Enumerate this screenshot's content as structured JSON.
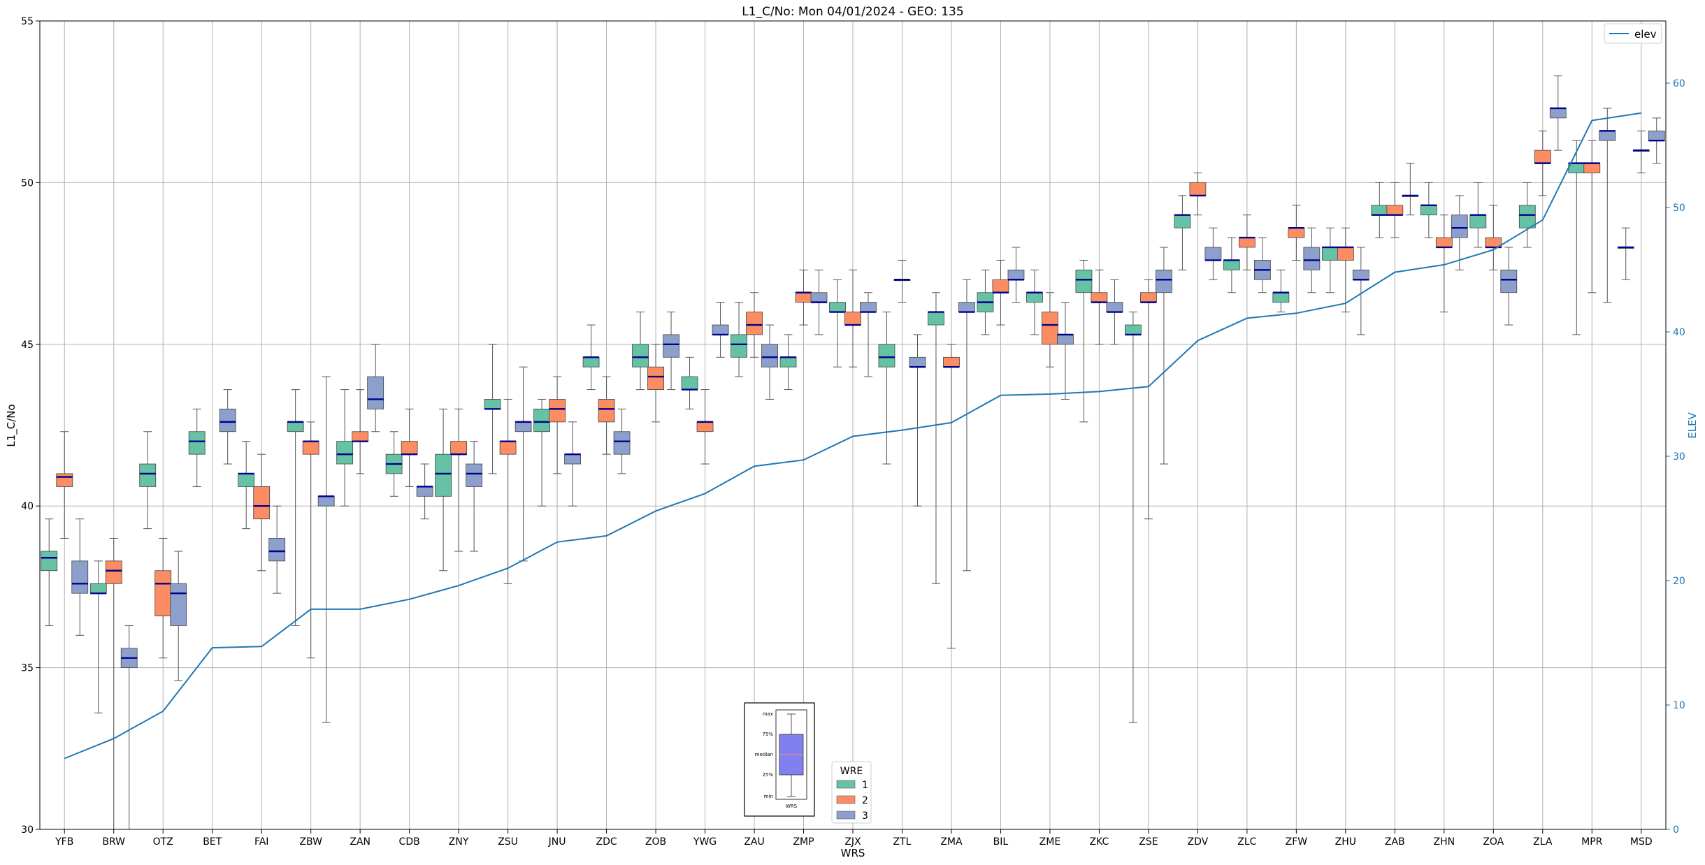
{
  "chart_data": {
    "type": "box",
    "title": "L1_C/No: Mon 04/01/2024 - GEO: 135",
    "xlabel": "WRS",
    "ylabel": "L1_C/No",
    "y2label": "ELEV",
    "ylim": [
      30,
      55
    ],
    "y2lim": [
      0,
      65
    ],
    "yticks": [
      "30",
      "35",
      "40",
      "45",
      "50",
      "55"
    ],
    "y2ticks": [
      "0",
      "10",
      "20",
      "30",
      "40",
      "50",
      "60"
    ],
    "grid": true,
    "categories": [
      "YFB",
      "BRW",
      "OTZ",
      "BET",
      "FAI",
      "ZBW",
      "ZAN",
      "CDB",
      "ZNY",
      "ZSU",
      "JNU",
      "ZDC",
      "ZOB",
      "YWG",
      "ZAU",
      "ZMP",
      "ZJX",
      "ZTL",
      "ZMA",
      "BIL",
      "ZME",
      "ZKC",
      "ZSE",
      "ZDV",
      "ZLC",
      "ZFW",
      "ZHU",
      "ZAB",
      "ZHN",
      "ZOA",
      "ZLA",
      "MPR",
      "MSD"
    ],
    "wre_colors": {
      "1": "#66c2a5",
      "2": "#fc8d62",
      "3": "#8da0cb"
    },
    "boxes": [
      {
        "wrs": "YFB",
        "wre": "1",
        "min": 36.3,
        "q1": 38.0,
        "median": 38.4,
        "q3": 38.6,
        "max": 39.6
      },
      {
        "wrs": "YFB",
        "wre": "2",
        "min": 39.0,
        "q1": 40.6,
        "median": 40.9,
        "q3": 41.0,
        "max": 42.3
      },
      {
        "wrs": "YFB",
        "wre": "3",
        "min": 36.0,
        "q1": 37.3,
        "median": 37.6,
        "q3": 38.3,
        "max": 39.6
      },
      {
        "wrs": "BRW",
        "wre": "1",
        "min": 33.6,
        "q1": 37.3,
        "median": 37.3,
        "q3": 37.6,
        "max": 38.3
      },
      {
        "wrs": "BRW",
        "wre": "2",
        "min": 30.0,
        "q1": 37.6,
        "median": 38.0,
        "q3": 38.3,
        "max": 39.0
      },
      {
        "wrs": "BRW",
        "wre": "3",
        "min": 30.0,
        "q1": 35.0,
        "median": 35.3,
        "q3": 35.6,
        "max": 36.3
      },
      {
        "wrs": "OTZ",
        "wre": "1",
        "min": 39.3,
        "q1": 40.6,
        "median": 41.0,
        "q3": 41.3,
        "max": 42.3
      },
      {
        "wrs": "OTZ",
        "wre": "2",
        "min": 35.3,
        "q1": 36.6,
        "median": 37.6,
        "q3": 38.0,
        "max": 39.0
      },
      {
        "wrs": "OTZ",
        "wre": "3",
        "min": 34.6,
        "q1": 36.3,
        "median": 37.3,
        "q3": 37.6,
        "max": 38.6
      },
      {
        "wrs": "BET",
        "wre": "1",
        "min": 40.6,
        "q1": 41.6,
        "median": 42.0,
        "q3": 42.3,
        "max": 43.0
      },
      {
        "wrs": "BET",
        "wre": "3",
        "min": 41.3,
        "q1": 42.3,
        "median": 42.6,
        "q3": 43.0,
        "max": 43.6
      },
      {
        "wrs": "FAI",
        "wre": "1",
        "min": 39.3,
        "q1": 40.6,
        "median": 41.0,
        "q3": 41.0,
        "max": 42.0
      },
      {
        "wrs": "FAI",
        "wre": "2",
        "min": 38.0,
        "q1": 39.6,
        "median": 40.0,
        "q3": 40.6,
        "max": 41.6
      },
      {
        "wrs": "FAI",
        "wre": "3",
        "min": 37.3,
        "q1": 38.3,
        "median": 38.6,
        "q3": 39.0,
        "max": 40.0
      },
      {
        "wrs": "ZBW",
        "wre": "1",
        "min": 36.3,
        "q1": 42.3,
        "median": 42.6,
        "q3": 42.6,
        "max": 43.6
      },
      {
        "wrs": "ZBW",
        "wre": "2",
        "min": 35.3,
        "q1": 41.6,
        "median": 42.0,
        "q3": 42.0,
        "max": 42.6
      },
      {
        "wrs": "ZBW",
        "wre": "3",
        "min": 33.3,
        "q1": 40.0,
        "median": 40.3,
        "q3": 40.3,
        "max": 44.0
      },
      {
        "wrs": "ZAN",
        "wre": "1",
        "min": 40.0,
        "q1": 41.3,
        "median": 41.6,
        "q3": 42.0,
        "max": 43.6
      },
      {
        "wrs": "ZAN",
        "wre": "2",
        "min": 41.0,
        "q1": 42.0,
        "median": 42.0,
        "q3": 42.3,
        "max": 43.6
      },
      {
        "wrs": "ZAN",
        "wre": "3",
        "min": 42.3,
        "q1": 43.0,
        "median": 43.3,
        "q3": 44.0,
        "max": 45.0
      },
      {
        "wrs": "CDB",
        "wre": "1",
        "min": 40.3,
        "q1": 41.0,
        "median": 41.3,
        "q3": 41.6,
        "max": 42.3
      },
      {
        "wrs": "CDB",
        "wre": "2",
        "min": 40.6,
        "q1": 41.6,
        "median": 41.6,
        "q3": 42.0,
        "max": 43.0
      },
      {
        "wrs": "CDB",
        "wre": "3",
        "min": 39.6,
        "q1": 40.3,
        "median": 40.6,
        "q3": 40.6,
        "max": 41.3
      },
      {
        "wrs": "ZNY",
        "wre": "1",
        "min": 38.0,
        "q1": 40.3,
        "median": 41.0,
        "q3": 41.6,
        "max": 43.0
      },
      {
        "wrs": "ZNY",
        "wre": "2",
        "min": 38.6,
        "q1": 41.6,
        "median": 41.6,
        "q3": 42.0,
        "max": 43.0
      },
      {
        "wrs": "ZNY",
        "wre": "3",
        "min": 38.6,
        "q1": 40.6,
        "median": 41.0,
        "q3": 41.3,
        "max": 42.0
      },
      {
        "wrs": "ZSU",
        "wre": "1",
        "min": 41.0,
        "q1": 43.0,
        "median": 43.0,
        "q3": 43.3,
        "max": 45.0
      },
      {
        "wrs": "ZSU",
        "wre": "2",
        "min": 37.6,
        "q1": 41.6,
        "median": 42.0,
        "q3": 42.0,
        "max": 43.3
      },
      {
        "wrs": "ZSU",
        "wre": "3",
        "min": 38.3,
        "q1": 42.3,
        "median": 42.6,
        "q3": 42.6,
        "max": 44.3
      },
      {
        "wrs": "JNU",
        "wre": "1",
        "min": 40.0,
        "q1": 42.3,
        "median": 42.6,
        "q3": 43.0,
        "max": 43.3
      },
      {
        "wrs": "JNU",
        "wre": "2",
        "min": 41.0,
        "q1": 42.6,
        "median": 43.0,
        "q3": 43.3,
        "max": 44.0
      },
      {
        "wrs": "JNU",
        "wre": "3",
        "min": 40.0,
        "q1": 41.3,
        "median": 41.6,
        "q3": 41.6,
        "max": 42.6
      },
      {
        "wrs": "ZDC",
        "wre": "1",
        "min": 43.6,
        "q1": 44.3,
        "median": 44.6,
        "q3": 44.6,
        "max": 45.6
      },
      {
        "wrs": "ZDC",
        "wre": "2",
        "min": 41.6,
        "q1": 42.6,
        "median": 43.0,
        "q3": 43.3,
        "max": 44.0
      },
      {
        "wrs": "ZDC",
        "wre": "3",
        "min": 41.0,
        "q1": 41.6,
        "median": 42.0,
        "q3": 42.3,
        "max": 43.0
      },
      {
        "wrs": "ZOB",
        "wre": "1",
        "min": 43.6,
        "q1": 44.3,
        "median": 44.6,
        "q3": 45.0,
        "max": 46.0
      },
      {
        "wrs": "ZOB",
        "wre": "2",
        "min": 42.6,
        "q1": 43.6,
        "median": 44.0,
        "q3": 44.3,
        "max": 45.0
      },
      {
        "wrs": "ZOB",
        "wre": "3",
        "min": 43.6,
        "q1": 44.6,
        "median": 45.0,
        "q3": 45.3,
        "max": 46.0
      },
      {
        "wrs": "YWG",
        "wre": "1",
        "min": 43.0,
        "q1": 43.6,
        "median": 43.6,
        "q3": 44.0,
        "max": 44.6
      },
      {
        "wrs": "YWG",
        "wre": "2",
        "min": 41.3,
        "q1": 42.3,
        "median": 42.6,
        "q3": 42.6,
        "max": 43.6
      },
      {
        "wrs": "YWG",
        "wre": "3",
        "min": 44.6,
        "q1": 45.3,
        "median": 45.3,
        "q3": 45.6,
        "max": 46.3
      },
      {
        "wrs": "ZAU",
        "wre": "1",
        "min": 44.0,
        "q1": 44.6,
        "median": 45.0,
        "q3": 45.3,
        "max": 46.3
      },
      {
        "wrs": "ZAU",
        "wre": "2",
        "min": 44.6,
        "q1": 45.3,
        "median": 45.6,
        "q3": 46.0,
        "max": 46.6
      },
      {
        "wrs": "ZAU",
        "wre": "3",
        "min": 43.3,
        "q1": 44.3,
        "median": 44.6,
        "q3": 45.0,
        "max": 45.6
      },
      {
        "wrs": "ZMP",
        "wre": "1",
        "min": 43.6,
        "q1": 44.3,
        "median": 44.6,
        "q3": 44.6,
        "max": 45.3
      },
      {
        "wrs": "ZMP",
        "wre": "2",
        "min": 45.6,
        "q1": 46.3,
        "median": 46.6,
        "q3": 46.6,
        "max": 47.3
      },
      {
        "wrs": "ZMP",
        "wre": "3",
        "min": 45.3,
        "q1": 46.3,
        "median": 46.3,
        "q3": 46.6,
        "max": 47.3
      },
      {
        "wrs": "ZJX",
        "wre": "1",
        "min": 44.3,
        "q1": 46.0,
        "median": 46.0,
        "q3": 46.3,
        "max": 47.0
      },
      {
        "wrs": "ZJX",
        "wre": "2",
        "min": 44.3,
        "q1": 45.6,
        "median": 45.6,
        "q3": 46.0,
        "max": 47.3
      },
      {
        "wrs": "ZJX",
        "wre": "3",
        "min": 44.0,
        "q1": 46.0,
        "median": 46.0,
        "q3": 46.3,
        "max": 46.6
      },
      {
        "wrs": "ZTL",
        "wre": "1",
        "min": 41.3,
        "q1": 44.3,
        "median": 44.6,
        "q3": 45.0,
        "max": 46.0
      },
      {
        "wrs": "ZTL",
        "wre": "2",
        "min": 46.3,
        "q1": 47.0,
        "median": 47.0,
        "q3": 47.0,
        "max": 47.6
      },
      {
        "wrs": "ZTL",
        "wre": "3",
        "min": 40.0,
        "q1": 44.3,
        "median": 44.3,
        "q3": 44.6,
        "max": 45.3
      },
      {
        "wrs": "ZMA",
        "wre": "1",
        "min": 37.6,
        "q1": 45.6,
        "median": 46.0,
        "q3": 46.0,
        "max": 46.6
      },
      {
        "wrs": "ZMA",
        "wre": "2",
        "min": 35.6,
        "q1": 44.3,
        "median": 44.3,
        "q3": 44.6,
        "max": 45.0
      },
      {
        "wrs": "ZMA",
        "wre": "3",
        "min": 38.0,
        "q1": 46.0,
        "median": 46.0,
        "q3": 46.3,
        "max": 47.0
      },
      {
        "wrs": "BIL",
        "wre": "1",
        "min": 45.3,
        "q1": 46.0,
        "median": 46.3,
        "q3": 46.6,
        "max": 47.3
      },
      {
        "wrs": "BIL",
        "wre": "2",
        "min": 45.6,
        "q1": 46.6,
        "median": 46.6,
        "q3": 47.0,
        "max": 47.6
      },
      {
        "wrs": "BIL",
        "wre": "3",
        "min": 46.3,
        "q1": 47.0,
        "median": 47.0,
        "q3": 47.3,
        "max": 48.0
      },
      {
        "wrs": "ZME",
        "wre": "1",
        "min": 45.3,
        "q1": 46.3,
        "median": 46.6,
        "q3": 46.6,
        "max": 47.3
      },
      {
        "wrs": "ZME",
        "wre": "2",
        "min": 44.3,
        "q1": 45.0,
        "median": 45.6,
        "q3": 46.0,
        "max": 46.6
      },
      {
        "wrs": "ZME",
        "wre": "3",
        "min": 43.3,
        "q1": 45.0,
        "median": 45.3,
        "q3": 45.3,
        "max": 46.3
      },
      {
        "wrs": "ZKC",
        "wre": "1",
        "min": 42.6,
        "q1": 46.6,
        "median": 47.0,
        "q3": 47.3,
        "max": 47.6
      },
      {
        "wrs": "ZKC",
        "wre": "2",
        "min": 45.0,
        "q1": 46.3,
        "median": 46.3,
        "q3": 46.6,
        "max": 47.3
      },
      {
        "wrs": "ZKC",
        "wre": "3",
        "min": 45.0,
        "q1": 46.0,
        "median": 46.0,
        "q3": 46.3,
        "max": 47.0
      },
      {
        "wrs": "ZSE",
        "wre": "1",
        "min": 33.3,
        "q1": 45.3,
        "median": 45.3,
        "q3": 45.6,
        "max": 46.0
      },
      {
        "wrs": "ZSE",
        "wre": "2",
        "min": 39.6,
        "q1": 46.3,
        "median": 46.3,
        "q3": 46.6,
        "max": 47.0
      },
      {
        "wrs": "ZSE",
        "wre": "3",
        "min": 41.3,
        "q1": 46.6,
        "median": 47.0,
        "q3": 47.3,
        "max": 48.0
      },
      {
        "wrs": "ZDV",
        "wre": "1",
        "min": 47.3,
        "q1": 48.6,
        "median": 49.0,
        "q3": 49.0,
        "max": 49.6
      },
      {
        "wrs": "ZDV",
        "wre": "2",
        "min": 49.0,
        "q1": 49.6,
        "median": 49.6,
        "q3": 50.0,
        "max": 50.3
      },
      {
        "wrs": "ZDV",
        "wre": "3",
        "min": 47.0,
        "q1": 47.6,
        "median": 47.6,
        "q3": 48.0,
        "max": 48.6
      },
      {
        "wrs": "ZLC",
        "wre": "1",
        "min": 46.6,
        "q1": 47.3,
        "median": 47.6,
        "q3": 47.6,
        "max": 48.3
      },
      {
        "wrs": "ZLC",
        "wre": "2",
        "min": 47.3,
        "q1": 48.0,
        "median": 48.3,
        "q3": 48.3,
        "max": 49.0
      },
      {
        "wrs": "ZLC",
        "wre": "3",
        "min": 46.6,
        "q1": 47.0,
        "median": 47.3,
        "q3": 47.6,
        "max": 48.3
      },
      {
        "wrs": "ZFW",
        "wre": "1",
        "min": 46.0,
        "q1": 46.3,
        "median": 46.6,
        "q3": 46.6,
        "max": 47.3
      },
      {
        "wrs": "ZFW",
        "wre": "2",
        "min": 47.6,
        "q1": 48.3,
        "median": 48.6,
        "q3": 48.6,
        "max": 49.3
      },
      {
        "wrs": "ZFW",
        "wre": "3",
        "min": 46.6,
        "q1": 47.3,
        "median": 47.6,
        "q3": 48.0,
        "max": 48.6
      },
      {
        "wrs": "ZHU",
        "wre": "1",
        "min": 46.6,
        "q1": 47.6,
        "median": 48.0,
        "q3": 48.0,
        "max": 48.6
      },
      {
        "wrs": "ZHU",
        "wre": "2",
        "min": 46.0,
        "q1": 47.6,
        "median": 48.0,
        "q3": 48.0,
        "max": 48.6
      },
      {
        "wrs": "ZHU",
        "wre": "3",
        "min": 45.3,
        "q1": 47.0,
        "median": 47.0,
        "q3": 47.3,
        "max": 48.0
      },
      {
        "wrs": "ZAB",
        "wre": "1",
        "min": 48.3,
        "q1": 49.0,
        "median": 49.0,
        "q3": 49.3,
        "max": 50.0
      },
      {
        "wrs": "ZAB",
        "wre": "2",
        "min": 48.3,
        "q1": 49.0,
        "median": 49.0,
        "q3": 49.3,
        "max": 50.0
      },
      {
        "wrs": "ZAB",
        "wre": "3",
        "min": 49.0,
        "q1": 49.6,
        "median": 49.6,
        "q3": 49.6,
        "max": 50.6
      },
      {
        "wrs": "ZHN",
        "wre": "1",
        "min": 48.3,
        "q1": 49.0,
        "median": 49.3,
        "q3": 49.3,
        "max": 50.0
      },
      {
        "wrs": "ZHN",
        "wre": "2",
        "min": 46.0,
        "q1": 48.0,
        "median": 48.0,
        "q3": 48.3,
        "max": 49.0
      },
      {
        "wrs": "ZHN",
        "wre": "3",
        "min": 47.3,
        "q1": 48.3,
        "median": 48.6,
        "q3": 49.0,
        "max": 49.6
      },
      {
        "wrs": "ZOA",
        "wre": "1",
        "min": 48.0,
        "q1": 48.6,
        "median": 49.0,
        "q3": 49.0,
        "max": 50.0
      },
      {
        "wrs": "ZOA",
        "wre": "2",
        "min": 47.3,
        "q1": 48.0,
        "median": 48.0,
        "q3": 48.3,
        "max": 49.3
      },
      {
        "wrs": "ZOA",
        "wre": "3",
        "min": 45.6,
        "q1": 46.6,
        "median": 47.0,
        "q3": 47.3,
        "max": 48.0
      },
      {
        "wrs": "ZLA",
        "wre": "1",
        "min": 48.0,
        "q1": 48.6,
        "median": 49.0,
        "q3": 49.3,
        "max": 50.0
      },
      {
        "wrs": "ZLA",
        "wre": "2",
        "min": 49.6,
        "q1": 50.6,
        "median": 50.6,
        "q3": 51.0,
        "max": 51.6
      },
      {
        "wrs": "ZLA",
        "wre": "3",
        "min": 51.0,
        "q1": 52.0,
        "median": 52.3,
        "q3": 52.3,
        "max": 53.3
      },
      {
        "wrs": "MPR",
        "wre": "1",
        "min": 45.3,
        "q1": 50.3,
        "median": 50.6,
        "q3": 50.6,
        "max": 51.3
      },
      {
        "wrs": "MPR",
        "wre": "2",
        "min": 46.6,
        "q1": 50.3,
        "median": 50.6,
        "q3": 50.6,
        "max": 51.3
      },
      {
        "wrs": "MPR",
        "wre": "3",
        "min": 46.3,
        "q1": 51.3,
        "median": 51.6,
        "q3": 51.6,
        "max": 52.3
      },
      {
        "wrs": "MSD",
        "wre": "1",
        "min": 47.0,
        "q1": 48.0,
        "median": 48.0,
        "q3": 48.0,
        "max": 48.6
      },
      {
        "wrs": "MSD",
        "wre": "2",
        "min": 50.3,
        "q1": 51.0,
        "median": 51.0,
        "q3": 51.0,
        "max": 51.6
      },
      {
        "wrs": "MSD",
        "wre": "3",
        "min": 50.6,
        "q1": 51.3,
        "median": 51.3,
        "q3": 51.6,
        "max": 52.0
      }
    ],
    "elev_series": {
      "name": "elev",
      "color": "#1f77b4",
      "values": [
        5.7,
        7.3,
        9.5,
        14.6,
        14.7,
        17.7,
        17.7,
        18.5,
        19.6,
        21.0,
        23.1,
        23.6,
        25.6,
        27.0,
        29.2,
        29.7,
        31.6,
        32.1,
        32.7,
        34.9,
        35.0,
        35.2,
        35.6,
        39.3,
        41.1,
        41.5,
        42.3,
        44.8,
        45.4,
        46.6,
        49.0,
        57.0,
        57.6
      ]
    },
    "legend_main": {
      "label": "elev",
      "position": "top-right"
    },
    "legend_wre": {
      "title": "WRE",
      "items": [
        "1",
        "2",
        "3"
      ],
      "position": "bottom-center"
    },
    "inset_key": {
      "labels": [
        "max",
        "75%",
        "median",
        "25%",
        "min"
      ],
      "xlabel": "WRS"
    }
  }
}
